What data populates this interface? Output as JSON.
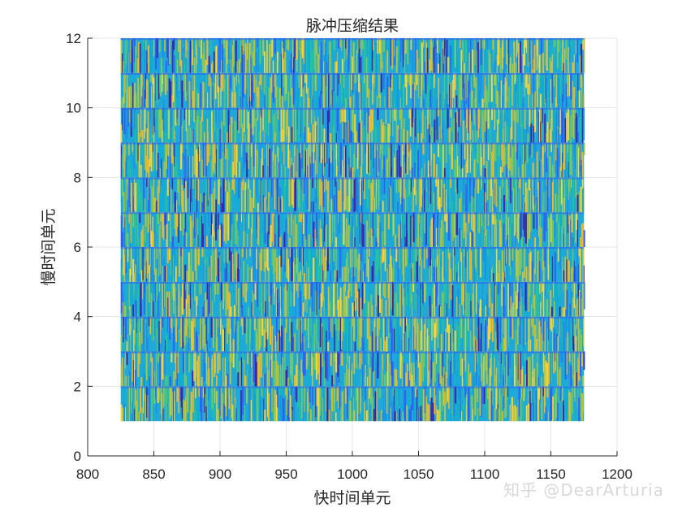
{
  "chart_data": {
    "type": "mesh",
    "title": "脉冲压缩结果",
    "xlabel": "快时间单元",
    "ylabel": "慢时间单元",
    "xlim": [
      800,
      1200
    ],
    "ylim": [
      0,
      12
    ],
    "xticks": [
      800,
      850,
      900,
      950,
      1000,
      1050,
      1100,
      1150,
      1200
    ],
    "yticks": [
      0,
      2,
      4,
      6,
      8,
      10,
      12
    ],
    "grid": true,
    "colormap": "parula",
    "data_extent": {
      "x": [
        825,
        1175
      ],
      "y": [
        1,
        12
      ]
    },
    "slow_time_rows": [
      1,
      2,
      3,
      4,
      5,
      6,
      7,
      8,
      9,
      10,
      11,
      12
    ],
    "colors": [
      "#3e26a8",
      "#2f60f5",
      "#1b91e6",
      "#0cb0cc",
      "#26c19f",
      "#6fc86a",
      "#b8c33a",
      "#e9ba31",
      "#f7d63c"
    ]
  },
  "watermark": "知乎 @DearArturia"
}
